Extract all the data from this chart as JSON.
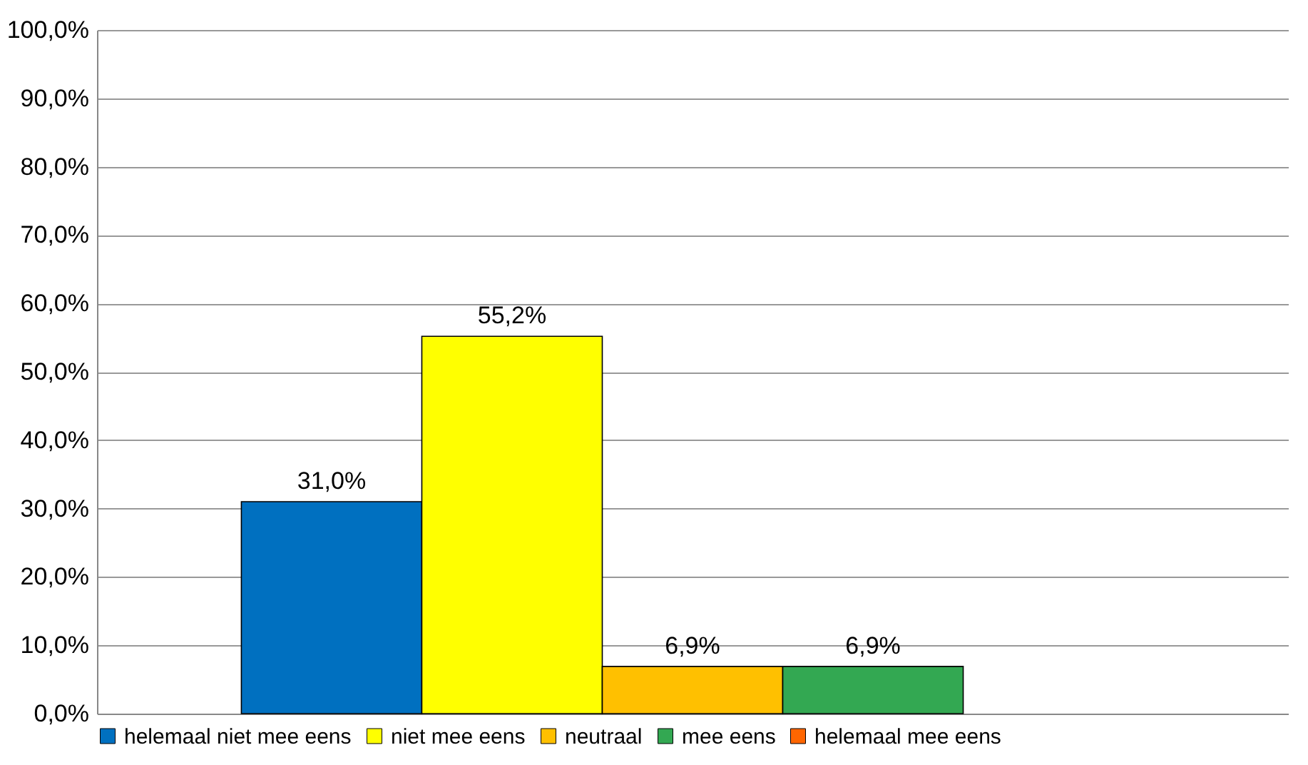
{
  "chart_data": {
    "type": "bar",
    "categories": [
      null
    ],
    "series": [
      {
        "name": "helemaal niet mee eens",
        "color": "#0070c0",
        "values": [
          31.0
        ],
        "value_labels": [
          "31,0%"
        ]
      },
      {
        "name": "niet mee eens",
        "color": "#ffff00",
        "values": [
          55.2
        ],
        "value_labels": [
          "55,2%"
        ]
      },
      {
        "name": "neutraal",
        "color": "#ffc000",
        "values": [
          6.9
        ],
        "value_labels": [
          "6,9%"
        ]
      },
      {
        "name": "mee eens",
        "color": "#33a852",
        "values": [
          6.9
        ],
        "value_labels": [
          "6,9%"
        ]
      },
      {
        "name": "helemaal mee eens",
        "color": "#ff6600",
        "values": [
          0
        ],
        "value_labels": [
          null
        ]
      }
    ],
    "ylim": [
      0,
      100
    ],
    "yticks": [
      {
        "value": 0,
        "label": "0,0%"
      },
      {
        "value": 10,
        "label": "10,0%"
      },
      {
        "value": 20,
        "label": "20,0%"
      },
      {
        "value": 30,
        "label": "30,0%"
      },
      {
        "value": 40,
        "label": "40,0%"
      },
      {
        "value": 50,
        "label": "50,0%"
      },
      {
        "value": 60,
        "label": "60,0%"
      },
      {
        "value": 70,
        "label": "70,0%"
      },
      {
        "value": 80,
        "label": "80,0%"
      },
      {
        "value": 90,
        "label": "90,0%"
      },
      {
        "value": 100,
        "label": "100,0%"
      }
    ],
    "grid": "y",
    "legend": "bottom"
  }
}
